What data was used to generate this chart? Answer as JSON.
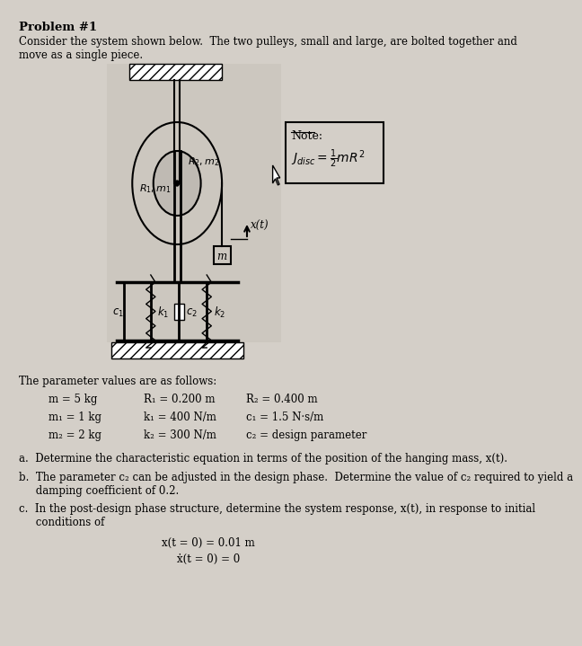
{
  "title": "Problem #1",
  "intro_line1": "Consider the system shown below.  The two pulleys, small and large, are bolted together and",
  "intro_line2": "move as a single piece.",
  "bg_color": "#d4cfc8",
  "params_header": "The parameter values are as follows:",
  "params": [
    [
      "m = 5 kg",
      "R₁ = 0.200 m",
      "R₂ = 0.400 m"
    ],
    [
      "m₁ = 1 kg",
      "k₁ = 400 N/m",
      "c₁ = 1.5 N·s/m"
    ],
    [
      "m₂ = 2 kg",
      "k₂ = 300 N/m",
      "c₂ = design parameter"
    ]
  ],
  "question_a": "a.  Determine the characteristic equation in terms of the position of the hanging mass, x(t).",
  "question_b1": "b.  The parameter c₂ can be adjusted in the design phase.  Determine the value of c₂ required to yield a",
  "question_b2": "     damping coefficient of 0.2.",
  "question_c1": "c.  In the post-design phase structure, determine the system response, x(t), in response to initial",
  "question_c2": "     conditions of",
  "ic1": "x(t = 0) = 0.01 m",
  "ic2": "ẋ(t = 0) = 0"
}
